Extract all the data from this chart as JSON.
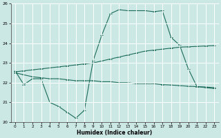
{
  "xlabel": "Humidex (Indice chaleur)",
  "bg_color": "#cce8e4",
  "grid_color": "#ffffff",
  "line_color": "#1a6b5a",
  "xlim": [
    -0.5,
    23.5
  ],
  "ylim": [
    20,
    26
  ],
  "yticks": [
    20,
    21,
    22,
    23,
    24,
    25,
    26
  ],
  "xticks": [
    0,
    1,
    2,
    3,
    4,
    5,
    6,
    7,
    8,
    9,
    10,
    11,
    12,
    13,
    14,
    15,
    16,
    17,
    18,
    19,
    20,
    21,
    22,
    23
  ],
  "line1_x": [
    0,
    1,
    2,
    3,
    4,
    5,
    6,
    7,
    8,
    9,
    10,
    11,
    12,
    13,
    14,
    15,
    16,
    17,
    18,
    19,
    20,
    21,
    22,
    23
  ],
  "line1_y": [
    22.6,
    21.9,
    22.2,
    22.2,
    21.0,
    20.8,
    20.5,
    20.2,
    20.6,
    23.1,
    24.4,
    25.5,
    25.7,
    25.65,
    25.65,
    25.65,
    25.6,
    25.65,
    24.3,
    23.9,
    22.7,
    21.8,
    21.75,
    21.7
  ],
  "line2_x": [
    0,
    1,
    2,
    3,
    4,
    5,
    6,
    7,
    8,
    9,
    10,
    11,
    12,
    13,
    14,
    15,
    16,
    17,
    18,
    19,
    20,
    21,
    22,
    23
  ],
  "line2_y": [
    22.55,
    22.6,
    22.65,
    22.7,
    22.75,
    22.8,
    22.85,
    22.9,
    22.95,
    23.0,
    23.1,
    23.2,
    23.3,
    23.4,
    23.5,
    23.6,
    23.65,
    23.7,
    23.75,
    23.8,
    23.82,
    23.84,
    23.86,
    23.88
  ],
  "line3_x": [
    0,
    1,
    2,
    3,
    4,
    5,
    6,
    7,
    8,
    9,
    10,
    11,
    12,
    13,
    14,
    15,
    16,
    17,
    18,
    19,
    20,
    21,
    22,
    23
  ],
  "line3_y": [
    22.5,
    22.4,
    22.3,
    22.25,
    22.2,
    22.2,
    22.15,
    22.1,
    22.1,
    22.1,
    22.05,
    22.05,
    22.0,
    22.0,
    21.95,
    21.95,
    21.95,
    21.9,
    21.88,
    21.85,
    21.82,
    21.8,
    21.78,
    21.75
  ],
  "figsize": [
    3.2,
    2.0
  ],
  "dpi": 100
}
